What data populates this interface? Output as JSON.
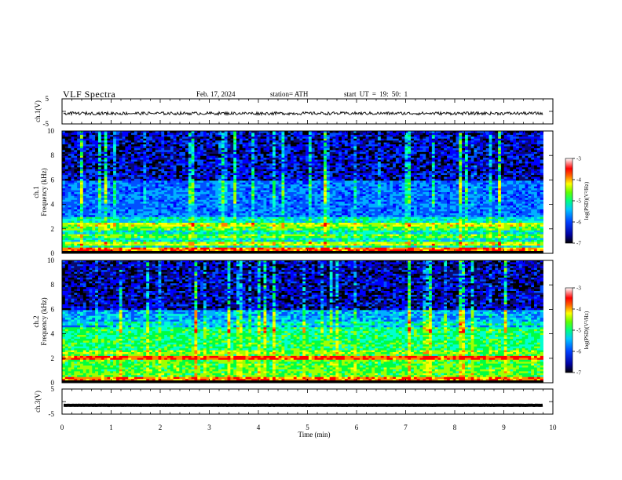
{
  "header": {
    "title": "VLF Spectra",
    "date": "Feb. 17, 2024",
    "station": "station= ATH",
    "start": "start UT = 19: 50: 1"
  },
  "colors": {
    "colormap": [
      "#000000",
      "#0a0a6e",
      "#0000ff",
      "#0050ff",
      "#00b0ff",
      "#00ffd0",
      "#00ff40",
      "#a0ff00",
      "#ffff00",
      "#ff8000",
      "#ff0000",
      "#ffffff"
    ]
  },
  "chart_data": [
    {
      "type": "line",
      "name": "ch1-waveform",
      "ylabel": "ch.1(V)",
      "ylim": [
        -5,
        5
      ],
      "yticks": [
        "5",
        "-5"
      ],
      "xlim": [
        0,
        10
      ],
      "note_values": {
        "baseline": -0.8,
        "amplitude": 0.6
      }
    },
    {
      "type": "heatmap",
      "name": "ch1-spectrogram",
      "ylabel_top": "ch.1",
      "ylabel": "Frequency (kHz)",
      "ylim": [
        0,
        10
      ],
      "yticks": [
        "0",
        "2",
        "4",
        "6",
        "8",
        "10"
      ],
      "xlim": [
        0,
        9.8
      ],
      "colorbar": {
        "label": "log(PSD)(V²/Hz)",
        "range": [
          -7,
          -3
        ],
        "ticks": [
          "-3",
          "-4",
          "-5",
          "-6",
          "-7"
        ]
      },
      "bands_khz": [
        {
          "f": 0.3,
          "level": -3.5
        },
        {
          "f": 0.8,
          "level": -4.2
        },
        {
          "f": 1.4,
          "level": -4.6
        },
        {
          "f": 2.0,
          "level": -4.6
        },
        {
          "f": 2.3,
          "level": -4.2
        }
      ]
    },
    {
      "type": "heatmap",
      "name": "ch2-spectrogram",
      "ylabel_top": "ch.2",
      "ylabel": "Frequency (kHz)",
      "ylim": [
        0,
        10
      ],
      "yticks": [
        "0",
        "2",
        "4",
        "6",
        "8",
        "10"
      ],
      "xlim": [
        0,
        9.8
      ],
      "colorbar": {
        "label": "log(PSD)(V²/Hz)",
        "range": [
          -7,
          -3
        ],
        "ticks": [
          "-3",
          "-4",
          "-5",
          "-6",
          "-7"
        ]
      },
      "bands_khz": [
        {
          "f": 0.3,
          "level": -3.6
        },
        {
          "f": 2.0,
          "level": -3.4
        },
        {
          "f": 2.5,
          "level": -4.4
        },
        {
          "f": 3.2,
          "level": -4.8
        },
        {
          "f": 4.8,
          "level": -5.2
        }
      ]
    },
    {
      "type": "line",
      "name": "ch3-waveform",
      "ylabel": "ch.3(V)",
      "ylim": [
        -5,
        5
      ],
      "yticks": [
        "5",
        "-5"
      ],
      "xlim": [
        0,
        10
      ],
      "note_values": {
        "baseline": -1.5,
        "amplitude": 0.25
      }
    }
  ],
  "x_axis": {
    "label": "Time (min)",
    "ticks": [
      "0",
      "1",
      "2",
      "3",
      "4",
      "5",
      "6",
      "7",
      "8",
      "9",
      "10"
    ]
  }
}
